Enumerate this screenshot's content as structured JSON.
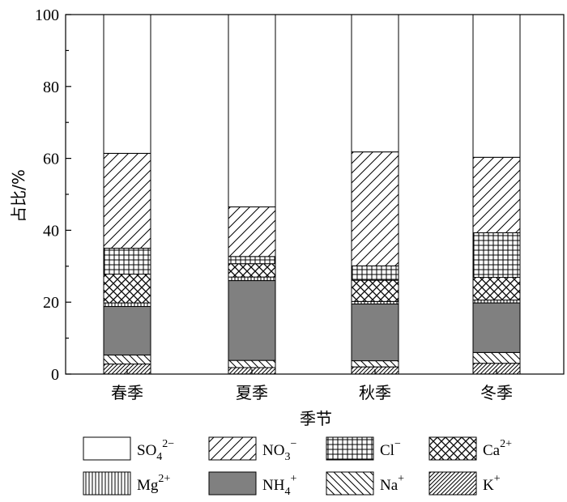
{
  "chart_data": {
    "type": "bar",
    "stacked": true,
    "ylabel": "占比/%",
    "xlabel": "季节",
    "ylim": [
      0,
      100
    ],
    "yticks": [
      0,
      20,
      40,
      60,
      80,
      100
    ],
    "categories": [
      "春季",
      "夏季",
      "秋季",
      "冬季"
    ],
    "series": [
      {
        "name": "K+",
        "label_base": "K",
        "label_sup": "+",
        "label_sub": "",
        "pattern": "diag-dense",
        "values": [
          2.8,
          1.8,
          2.0,
          3.0
        ]
      },
      {
        "name": "Na+",
        "label_base": "Na",
        "label_sup": "+",
        "label_sub": "",
        "pattern": "back-diag",
        "values": [
          2.5,
          2.0,
          1.7,
          3.0
        ]
      },
      {
        "name": "NH4+",
        "label_base": "NH",
        "label_sup": "+",
        "label_sub": "4",
        "pattern": "solid-gray",
        "values": [
          13.5,
          22.2,
          15.8,
          13.8
        ]
      },
      {
        "name": "Mg2+",
        "label_base": "Mg",
        "label_sup": "2+",
        "label_sub": "",
        "pattern": "vertical",
        "values": [
          1.0,
          1.0,
          0.7,
          0.8
        ]
      },
      {
        "name": "Ca2+",
        "label_base": "Ca",
        "label_sup": "2+",
        "label_sub": "",
        "pattern": "cross-hatch",
        "values": [
          8.0,
          3.7,
          5.9,
          6.3
        ]
      },
      {
        "name": "Cl-",
        "label_base": "Cl",
        "label_sup": "−",
        "label_sub": "",
        "pattern": "grid",
        "values": [
          7.2,
          2.0,
          4.0,
          12.4
        ]
      },
      {
        "name": "NO3-",
        "label_base": "NO",
        "label_sup": "−",
        "label_sub": "3",
        "pattern": "diag",
        "values": [
          26.4,
          13.8,
          31.7,
          21.0
        ]
      },
      {
        "name": "SO42-",
        "label_base": "SO",
        "label_sup": "2−",
        "label_sub": "4",
        "pattern": "white",
        "values": [
          38.6,
          53.5,
          38.2,
          39.7
        ]
      }
    ],
    "legend_order": [
      "SO42-",
      "NO3-",
      "Cl-",
      "Ca2+",
      "Mg2+",
      "NH4+",
      "Na+",
      "K+"
    ],
    "legend_position": "bottom",
    "grid": false
  }
}
